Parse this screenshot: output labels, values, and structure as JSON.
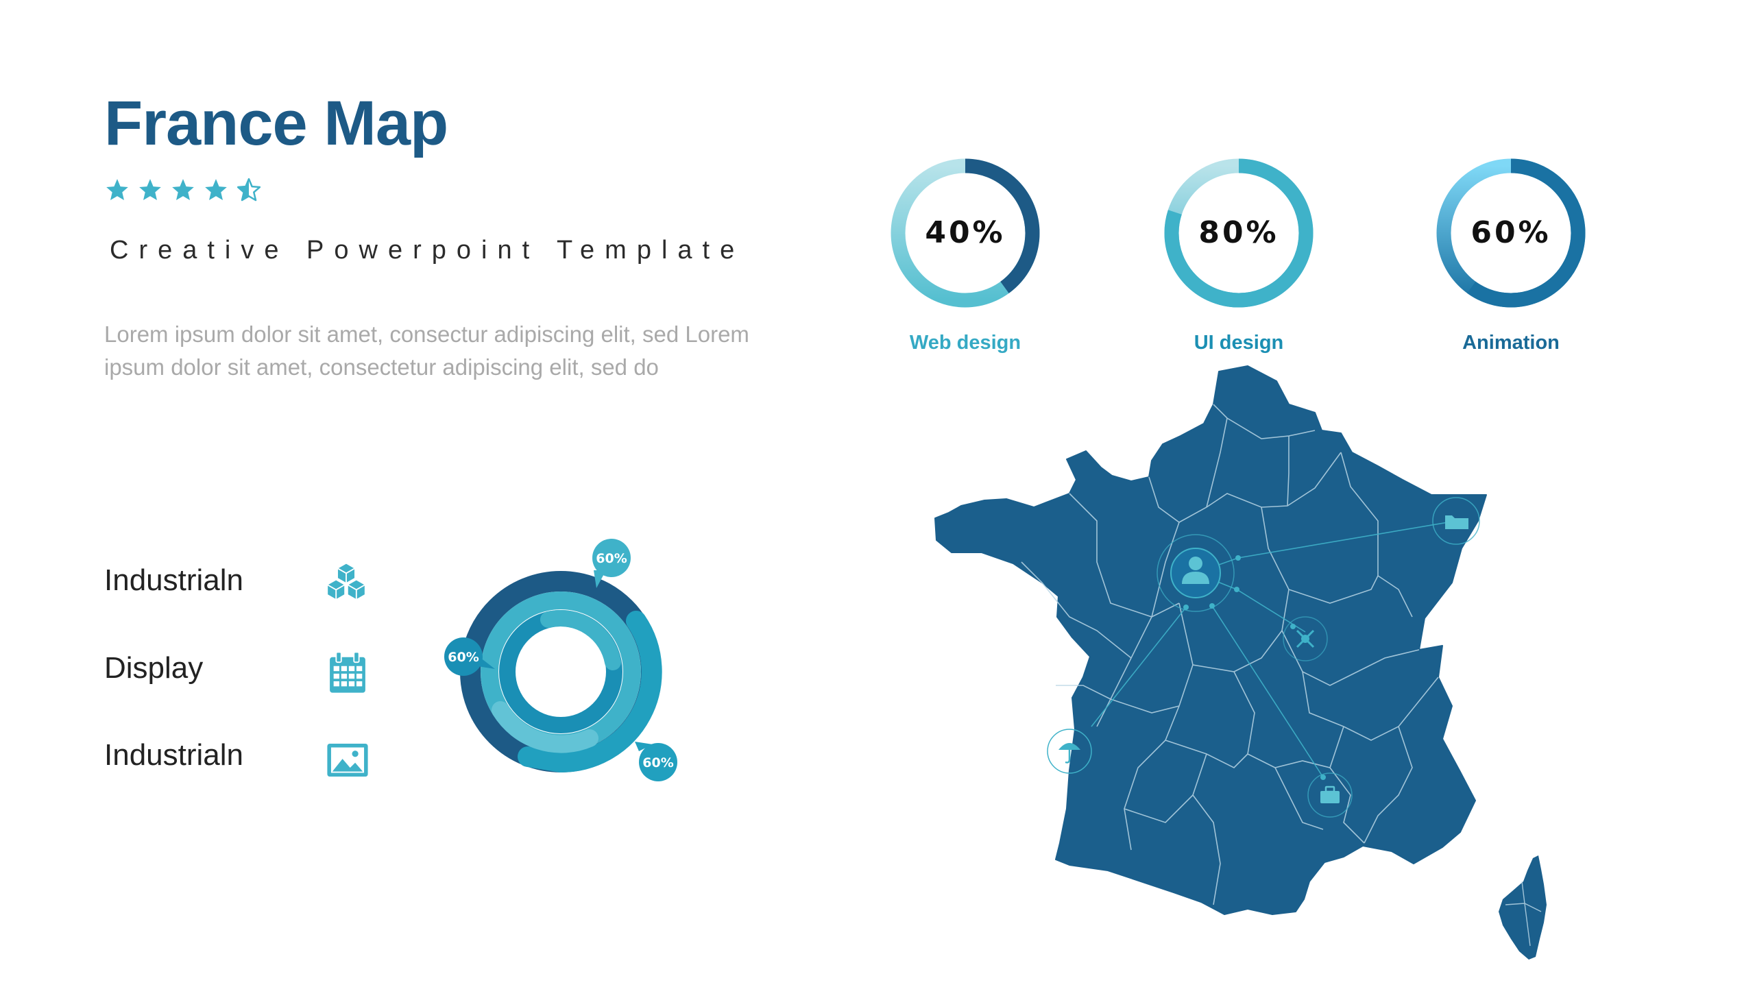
{
  "slide": {
    "title": "France Map",
    "rating": {
      "value": 4.5,
      "max": 5
    },
    "subtitle": "Creative Powerpoint Template",
    "body": "Lorem ipsum dolor sit amet, consectur adipiscing elit, sed Lorem ipsum dolor sit amet, consectetur adipiscing elit, sed do"
  },
  "legend": [
    {
      "label": "Industrialn",
      "icon": "cubes-icon"
    },
    {
      "label": "Display",
      "icon": "calendar-icon"
    },
    {
      "label": "Industrialn",
      "icon": "image-icon"
    }
  ],
  "donut_bubbles": [
    "60%",
    "60%",
    "60%"
  ],
  "progress_rings": [
    {
      "value": 40,
      "label": "40%",
      "caption": "Web design",
      "color": "#1d5a86",
      "caption_color": "#35a9c4"
    },
    {
      "value": 80,
      "label": "80%",
      "caption": "UI design",
      "color": "#3fb2c9",
      "caption_color": "#1b8fb3"
    },
    {
      "value": 60,
      "label": "60%",
      "caption": "Animation",
      "color": "#1a72a3",
      "caption_color": "#1a6a97"
    }
  ],
  "map": {
    "fill": "#1b5f8c",
    "markers": [
      {
        "icon": "user-icon"
      },
      {
        "icon": "folder-icon"
      },
      {
        "icon": "molecule-icon"
      },
      {
        "icon": "umbrella-icon"
      },
      {
        "icon": "briefcase-icon"
      }
    ]
  },
  "colors": {
    "accent": "#3fb2c9",
    "dark": "#1d5a86",
    "mid": "#1a8fb5"
  }
}
